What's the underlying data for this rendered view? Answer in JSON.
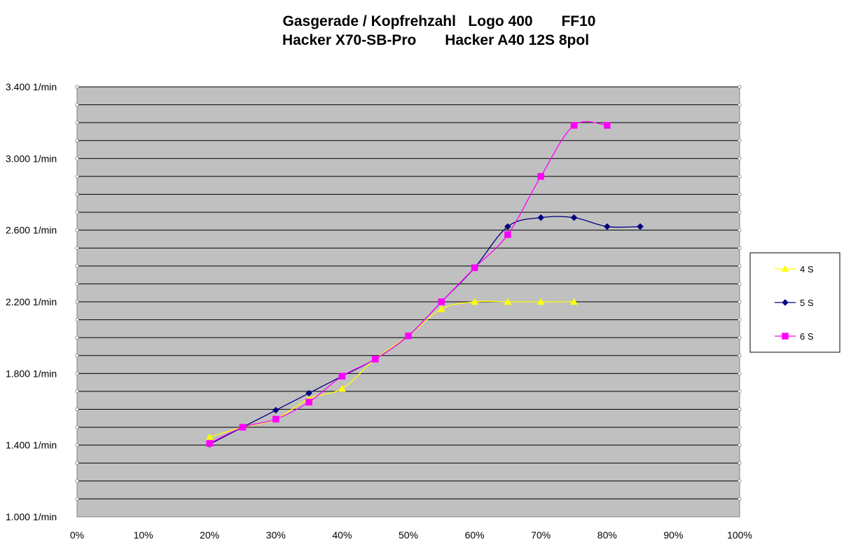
{
  "chart_data": {
    "type": "line",
    "title_lines": [
      "Gasgerade / Kopfrehzahl   Logo 400       FF10",
      "Hacker X70-SB-Pro       Hacker A40 12S 8pol"
    ],
    "xlabel": "",
    "ylabel": "",
    "xlim": [
      0,
      100
    ],
    "ylim": [
      1000,
      3400
    ],
    "x_ticks": [
      "0%",
      "10%",
      "20%",
      "30%",
      "40%",
      "50%",
      "60%",
      "70%",
      "80%",
      "90%",
      "100%"
    ],
    "y_ticks": [
      "1.000 1/min",
      "1.400 1/min",
      "1.800 1/min",
      "2.200 1/min",
      "2.600 1/min",
      "3.000 1/min",
      "3.400 1/min"
    ],
    "grid": true,
    "plot_background": "#c0c0c0",
    "legend_position": "right",
    "series": [
      {
        "name": "4 S",
        "color": "#ffff00",
        "marker": "triangle",
        "x": [
          20,
          25,
          30,
          35,
          40,
          45,
          50,
          55,
          60,
          65,
          70,
          75
        ],
        "values": [
          1445,
          1500,
          1545,
          1660,
          1715,
          1880,
          2010,
          2160,
          2200,
          2200,
          2200,
          2200
        ]
      },
      {
        "name": "5 S",
        "color": "#000080",
        "marker": "diamond",
        "x": [
          20,
          25,
          30,
          35,
          40,
          45,
          50,
          55,
          60,
          65,
          70,
          75,
          80,
          85
        ],
        "values": [
          1405,
          1500,
          1595,
          1690,
          1785,
          1880,
          2010,
          2200,
          2390,
          2620,
          2670,
          2670,
          2620,
          2620
        ]
      },
      {
        "name": "6 S",
        "color": "#ff00ff",
        "marker": "square",
        "x": [
          20,
          25,
          30,
          35,
          40,
          45,
          50,
          55,
          60,
          65,
          70,
          75,
          80
        ],
        "values": [
          1410,
          1500,
          1545,
          1640,
          1785,
          1880,
          2010,
          2200,
          2390,
          2575,
          2900,
          3185,
          3185
        ]
      }
    ]
  }
}
